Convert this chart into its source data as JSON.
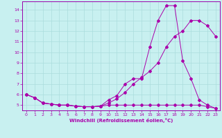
{
  "xlabel": "Windchill (Refroidissement éolien,°C)",
  "bg_color": "#c8f0f0",
  "grid_color": "#aadddd",
  "line_color": "#aa00aa",
  "spine_color": "#9900aa",
  "xlim": [
    -0.5,
    23.5
  ],
  "ylim": [
    4.5,
    14.8
  ],
  "xticks": [
    0,
    1,
    2,
    3,
    4,
    5,
    6,
    7,
    8,
    9,
    10,
    11,
    12,
    13,
    14,
    15,
    16,
    17,
    18,
    19,
    20,
    21,
    22,
    23
  ],
  "yticks": [
    5,
    6,
    7,
    8,
    9,
    10,
    11,
    12,
    13,
    14
  ],
  "line1_x": [
    0,
    1,
    2,
    3,
    4,
    5,
    6,
    7,
    8,
    9,
    10,
    11,
    12,
    13,
    14,
    15,
    16,
    17,
    18,
    19,
    20,
    21,
    22,
    23
  ],
  "line1_y": [
    6.0,
    5.7,
    5.2,
    5.1,
    5.0,
    5.0,
    4.9,
    4.85,
    4.85,
    4.9,
    5.0,
    5.0,
    5.0,
    5.0,
    5.0,
    5.0,
    5.0,
    5.0,
    5.0,
    5.0,
    5.0,
    5.0,
    4.85,
    4.7
  ],
  "line2_x": [
    0,
    1,
    2,
    3,
    4,
    5,
    6,
    7,
    8,
    9,
    10,
    11,
    12,
    13,
    14,
    15,
    16,
    17,
    18,
    19,
    20,
    21,
    22,
    23
  ],
  "line2_y": [
    6.0,
    5.7,
    5.2,
    5.1,
    5.0,
    5.0,
    4.9,
    4.85,
    4.85,
    4.9,
    5.2,
    5.6,
    6.2,
    7.0,
    7.6,
    8.2,
    9.0,
    10.5,
    11.5,
    12.0,
    13.0,
    13.0,
    12.5,
    11.5
  ],
  "line3_x": [
    0,
    1,
    2,
    3,
    4,
    5,
    6,
    7,
    8,
    9,
    10,
    11,
    12,
    13,
    14,
    15,
    16,
    17,
    18,
    19,
    20,
    21,
    22,
    23
  ],
  "line3_y": [
    6.0,
    5.7,
    5.2,
    5.1,
    5.0,
    5.0,
    4.9,
    4.85,
    4.85,
    4.9,
    5.5,
    5.9,
    7.0,
    7.5,
    7.5,
    10.5,
    13.0,
    14.4,
    14.4,
    9.2,
    7.5,
    5.5,
    5.0,
    4.7
  ]
}
